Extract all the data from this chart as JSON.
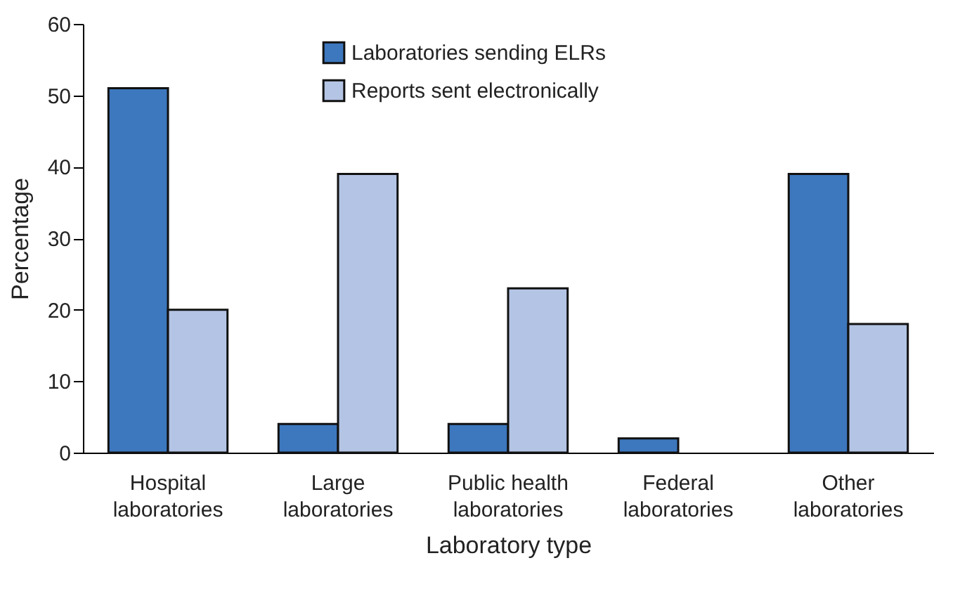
{
  "chart_data": {
    "type": "bar",
    "xlabel": "Laboratory type",
    "ylabel": "Percentage",
    "categories": [
      "Hospital laboratories",
      "Large laboratories",
      "Public health laboratories",
      "Federal laboratories",
      "Other laboratories"
    ],
    "series": [
      {
        "name": "Laboratories sending ELRs",
        "color": "#3d77bd",
        "values": [
          51,
          4,
          4,
          2,
          39
        ]
      },
      {
        "name": "Reports sent electronically",
        "color": "#b4c4e4",
        "values": [
          20,
          39,
          23,
          null,
          18
        ]
      }
    ],
    "ylim": [
      0,
      60
    ],
    "yticks": [
      0,
      10,
      20,
      30,
      40,
      50,
      60
    ],
    "grid": false,
    "legend": "top"
  }
}
